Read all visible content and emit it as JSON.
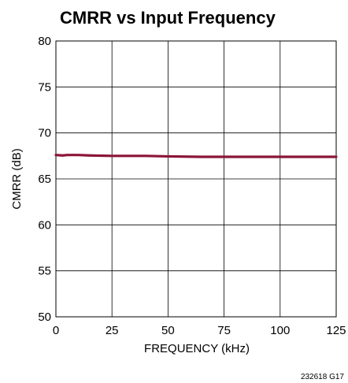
{
  "chart_data": {
    "type": "line",
    "title": "CMRR vs Input Frequency",
    "xlabel": "FREQUENCY (kHz)",
    "ylabel": "CMRR (dB)",
    "xlim": [
      0,
      125
    ],
    "ylim": [
      50,
      80
    ],
    "x_ticks": [
      0,
      25,
      50,
      75,
      100,
      125
    ],
    "y_ticks": [
      50,
      55,
      60,
      65,
      70,
      75,
      80
    ],
    "x_tick_labels": [
      "0",
      "25",
      "50",
      "75",
      "100",
      "125"
    ],
    "y_tick_labels": [
      "50",
      "55",
      "60",
      "65",
      "70",
      "75",
      "80"
    ],
    "grid": true,
    "series": [
      {
        "color": "#8b1538",
        "x": [
          0,
          3,
          5,
          10,
          15,
          25,
          40,
          50,
          65,
          75,
          90,
          100,
          110,
          125
        ],
        "y": [
          67.6,
          67.55,
          67.6,
          67.6,
          67.55,
          67.5,
          67.5,
          67.45,
          67.4,
          67.4,
          67.4,
          67.4,
          67.4,
          67.4
        ]
      }
    ],
    "footnote": "232618 G17"
  }
}
